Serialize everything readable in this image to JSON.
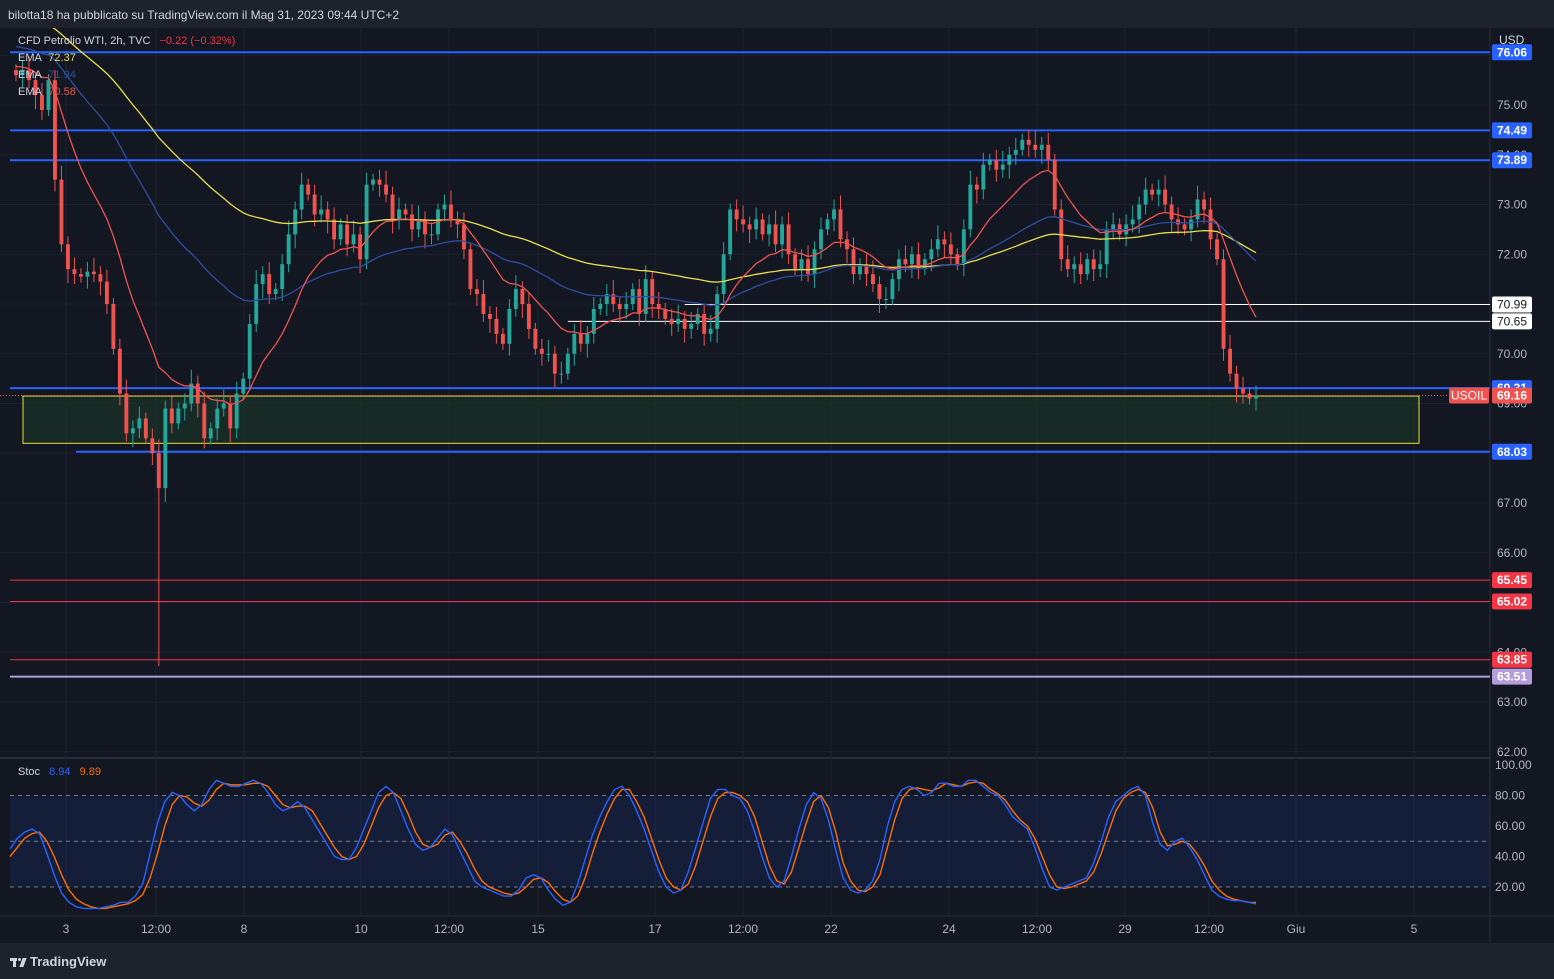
{
  "header": {
    "publish_text": "bilotta18 ha pubblicato su TradingView.com il Mag 31, 2023 09:44 UTC+2"
  },
  "legend": {
    "symbol": "CFD Petrolio WTI, 2h, TVC",
    "change": "−0.22 (−0.32%)",
    "ema1_label": "EMA",
    "ema1_value": "72.37",
    "ema2_label": "EMA",
    "ema2_value": "71.94",
    "ema3_label": "EMA",
    "ema3_value": "70.58",
    "stoch_label": "Stoc",
    "stoch_k": "8.94",
    "stoch_d": "9.89"
  },
  "footer": {
    "brand": "TradingView"
  },
  "colors": {
    "background": "#131722",
    "up": "#26a69a",
    "down": "#ef5350",
    "blue_line": "#2962ff",
    "red_line": "#f23645",
    "purple_line": "#b39ddb",
    "ema_yellow": "#e8dd4c",
    "ema_blue": "#2f4da0",
    "ema_red": "#ef5350",
    "stoch_k": "#2962ff",
    "stoch_d": "#ff6d00",
    "zone_fill": "#1d3a2a",
    "zone_border": "#e6e23a"
  },
  "chart_data": {
    "type": "candlestick",
    "currency": "USD",
    "instrument": "USOIL",
    "last_price": "69.16",
    "price_axis": {
      "ticks": [
        "76.00",
        "75.00",
        "74.00",
        "73.00",
        "72.00",
        "71.00",
        "70.00",
        "69.00",
        "68.00",
        "67.00",
        "66.00",
        "65.00",
        "64.00",
        "63.00",
        "62.00"
      ],
      "ylim": [
        62,
        76.2
      ]
    },
    "time_axis": {
      "ticks": [
        "3",
        "12:00",
        "8",
        "10",
        "12:00",
        "15",
        "17",
        "12:00",
        "22",
        "24",
        "12:00",
        "29",
        "12:00",
        "Giu",
        "5"
      ]
    },
    "horizontal_levels": [
      {
        "value": 76.06,
        "label": "76.06",
        "color": "#2962ff"
      },
      {
        "value": 74.49,
        "label": "74.49",
        "color": "#2962ff"
      },
      {
        "value": 73.89,
        "label": "73.89",
        "color": "#2962ff"
      },
      {
        "value": 69.31,
        "label": "69.31",
        "color": "#2962ff"
      },
      {
        "value": 68.03,
        "label": "68.03",
        "color": "#2962ff"
      },
      {
        "value": 65.45,
        "label": "65.45",
        "color": "#f23645"
      },
      {
        "value": 65.02,
        "label": "65.02",
        "color": "#f23645"
      },
      {
        "value": 63.85,
        "label": "63.85",
        "color": "#f23645"
      },
      {
        "value": 63.51,
        "label": "63.51",
        "color": "#b39ddb"
      }
    ],
    "ray_levels": [
      {
        "value": 70.99,
        "label": "70.99",
        "from_bar": 103
      },
      {
        "value": 70.65,
        "label": "70.65",
        "from_bar": 85
      }
    ],
    "zone": {
      "high": 69.15,
      "low": 68.2
    },
    "series": [
      {
        "name": "CFD Petrolio WTI",
        "close": [
          75.6,
          75.7,
          75.5,
          75.2,
          74.9,
          75.5,
          73.5,
          72.2,
          71.7,
          71.6,
          71.55,
          71.65,
          71.6,
          71.45,
          71.0,
          70.1,
          69.2,
          68.4,
          68.5,
          68.7,
          68.3,
          68.0,
          67.3,
          68.9,
          68.6,
          68.9,
          69.0,
          69.4,
          69.0,
          68.3,
          68.5,
          68.9,
          69.0,
          68.5,
          69.2,
          69.5,
          70.6,
          71.4,
          71.6,
          71.2,
          71.3,
          71.8,
          72.4,
          72.9,
          73.4,
          73.2,
          72.8,
          72.9,
          72.7,
          72.3,
          72.6,
          72.2,
          72.4,
          71.9,
          73.4,
          73.5,
          73.4,
          73.2,
          72.7,
          72.9,
          72.8,
          72.5,
          72.7,
          72.4,
          72.4,
          72.9,
          73.0,
          72.7,
          72.6,
          72.1,
          71.3,
          71.2,
          70.8,
          70.7,
          70.4,
          70.2,
          70.9,
          71.3,
          71.0,
          70.5,
          70.1,
          70.0,
          70.0,
          69.6,
          69.6,
          70.0,
          70.4,
          70.2,
          70.4,
          70.9,
          71.0,
          71.2,
          71.0,
          70.9,
          71.0,
          71.3,
          70.8,
          71.5,
          71.0,
          70.9,
          70.7,
          70.6,
          70.7,
          70.5,
          70.6,
          70.8,
          70.4,
          70.5,
          71.2,
          72.0,
          72.9,
          72.7,
          72.6,
          72.5,
          72.7,
          72.4,
          72.6,
          72.2,
          72.6,
          72.0,
          71.7,
          71.9,
          71.6,
          72.1,
          72.5,
          72.7,
          72.9,
          72.3,
          72.1,
          71.6,
          71.8,
          71.6,
          71.4,
          71.1,
          71.1,
          71.5,
          71.9,
          71.8,
          72.0,
          71.7,
          71.9,
          72.1,
          72.3,
          72.2,
          72.0,
          71.8,
          72.5,
          73.4,
          73.3,
          73.8,
          73.9,
          73.7,
          73.8,
          74.0,
          74.1,
          74.3,
          74.2,
          74.1,
          74.2,
          73.9,
          72.9,
          71.9,
          71.7,
          71.8,
          71.6,
          71.9,
          71.7,
          71.8,
          72.5,
          72.6,
          72.4,
          72.6,
          72.7,
          73.0,
          73.3,
          73.2,
          73.3,
          73.0,
          72.7,
          72.6,
          72.5,
          72.7,
          73.1,
          72.9,
          72.3,
          71.9,
          70.1,
          69.6,
          69.3,
          69.2,
          69.1,
          69.16
        ]
      }
    ]
  },
  "stochastic": {
    "levels": [
      20,
      50,
      80
    ],
    "axis_ticks": [
      "100.00",
      "80.00",
      "60.00",
      "40.00",
      "20.00"
    ],
    "k": [
      45,
      52,
      56,
      58,
      55,
      42,
      28,
      16,
      10,
      7,
      6,
      6,
      6,
      7,
      8,
      10,
      10,
      14,
      22,
      42,
      62,
      76,
      82,
      80,
      74,
      70,
      74,
      84,
      90,
      88,
      86,
      86,
      88,
      90,
      88,
      82,
      74,
      70,
      72,
      76,
      72,
      64,
      56,
      48,
      40,
      38,
      38,
      46,
      58,
      70,
      82,
      86,
      82,
      70,
      58,
      48,
      44,
      46,
      52,
      58,
      54,
      44,
      34,
      24,
      20,
      18,
      16,
      14,
      14,
      18,
      26,
      28,
      26,
      18,
      12,
      8,
      10,
      22,
      38,
      54,
      66,
      76,
      84,
      86,
      80,
      70,
      58,
      44,
      30,
      20,
      16,
      18,
      30,
      46,
      62,
      78,
      84,
      84,
      80,
      78,
      70,
      56,
      40,
      26,
      20,
      24,
      40,
      58,
      74,
      82,
      78,
      64,
      44,
      26,
      18,
      16,
      18,
      24,
      38,
      60,
      76,
      84,
      86,
      84,
      80,
      82,
      88,
      88,
      86,
      86,
      90,
      90,
      86,
      82,
      80,
      74,
      66,
      62,
      58,
      46,
      32,
      20,
      18,
      20,
      22,
      24,
      26,
      36,
      50,
      66,
      76,
      80,
      84,
      86,
      80,
      62,
      48,
      44,
      50,
      52,
      46,
      38,
      28,
      18,
      14,
      12,
      11,
      11,
      10,
      9
    ],
    "d": [
      40,
      46,
      52,
      55,
      56,
      50,
      40,
      28,
      18,
      12,
      9,
      7,
      6,
      6,
      7,
      8,
      9,
      11,
      15,
      26,
      42,
      60,
      74,
      80,
      79,
      75,
      73,
      77,
      84,
      88,
      87,
      87,
      87,
      88,
      88,
      86,
      80,
      74,
      72,
      73,
      73,
      70,
      62,
      54,
      46,
      40,
      38,
      40,
      48,
      60,
      72,
      80,
      82,
      78,
      68,
      56,
      48,
      46,
      48,
      54,
      56,
      50,
      42,
      32,
      24,
      20,
      18,
      16,
      15,
      16,
      20,
      25,
      26,
      23,
      17,
      12,
      10,
      14,
      26,
      42,
      56,
      68,
      78,
      84,
      84,
      76,
      66,
      52,
      38,
      26,
      20,
      18,
      22,
      34,
      50,
      66,
      78,
      82,
      82,
      80,
      76,
      66,
      50,
      34,
      24,
      22,
      30,
      46,
      62,
      76,
      80,
      72,
      56,
      36,
      24,
      18,
      17,
      20,
      28,
      46,
      64,
      78,
      84,
      85,
      84,
      83,
      85,
      88,
      87,
      86,
      88,
      89,
      88,
      84,
      81,
      77,
      70,
      64,
      60,
      52,
      40,
      28,
      20,
      19,
      20,
      22,
      24,
      30,
      42,
      56,
      70,
      78,
      82,
      84,
      82,
      72,
      56,
      47,
      48,
      50,
      48,
      42,
      34,
      24,
      18,
      14,
      12,
      11,
      10,
      9.89
    ]
  }
}
